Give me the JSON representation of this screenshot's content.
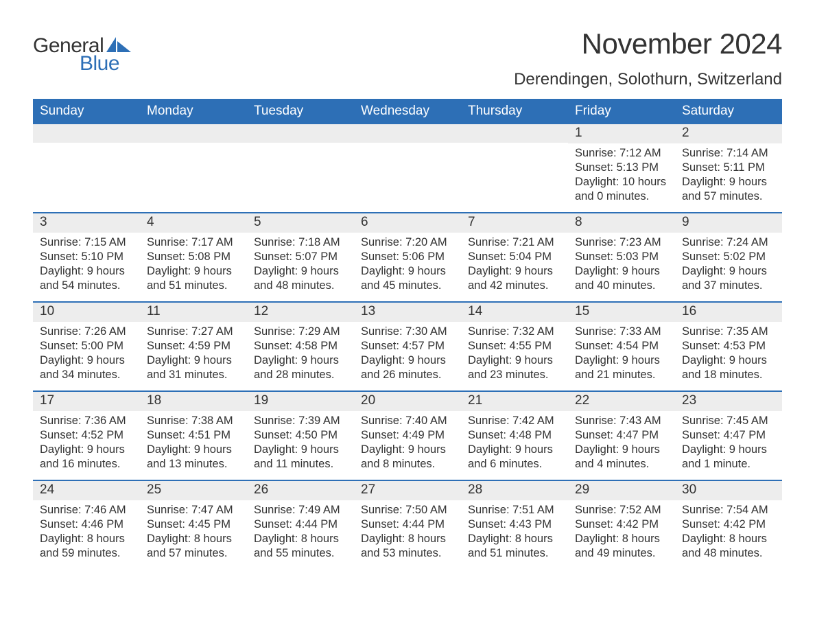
{
  "logo": {
    "text1": "General",
    "text2": "Blue",
    "flag_color": "#2d6fb6"
  },
  "title": "November 2024",
  "location": "Derendingen, Solothurn, Switzerland",
  "colors": {
    "header_bg": "#2d6fb6",
    "header_text": "#ffffff",
    "daynum_bg": "#ededed",
    "week_border": "#2d6fb6",
    "body_text": "#333333",
    "page_bg": "#ffffff"
  },
  "day_headers": [
    "Sunday",
    "Monday",
    "Tuesday",
    "Wednesday",
    "Thursday",
    "Friday",
    "Saturday"
  ],
  "weeks": [
    [
      {
        "day": "",
        "sunrise": "",
        "sunset": "",
        "daylight": ""
      },
      {
        "day": "",
        "sunrise": "",
        "sunset": "",
        "daylight": ""
      },
      {
        "day": "",
        "sunrise": "",
        "sunset": "",
        "daylight": ""
      },
      {
        "day": "",
        "sunrise": "",
        "sunset": "",
        "daylight": ""
      },
      {
        "day": "",
        "sunrise": "",
        "sunset": "",
        "daylight": ""
      },
      {
        "day": "1",
        "sunrise": "Sunrise: 7:12 AM",
        "sunset": "Sunset: 5:13 PM",
        "daylight": "Daylight: 10 hours and 0 minutes."
      },
      {
        "day": "2",
        "sunrise": "Sunrise: 7:14 AM",
        "sunset": "Sunset: 5:11 PM",
        "daylight": "Daylight: 9 hours and 57 minutes."
      }
    ],
    [
      {
        "day": "3",
        "sunrise": "Sunrise: 7:15 AM",
        "sunset": "Sunset: 5:10 PM",
        "daylight": "Daylight: 9 hours and 54 minutes."
      },
      {
        "day": "4",
        "sunrise": "Sunrise: 7:17 AM",
        "sunset": "Sunset: 5:08 PM",
        "daylight": "Daylight: 9 hours and 51 minutes."
      },
      {
        "day": "5",
        "sunrise": "Sunrise: 7:18 AM",
        "sunset": "Sunset: 5:07 PM",
        "daylight": "Daylight: 9 hours and 48 minutes."
      },
      {
        "day": "6",
        "sunrise": "Sunrise: 7:20 AM",
        "sunset": "Sunset: 5:06 PM",
        "daylight": "Daylight: 9 hours and 45 minutes."
      },
      {
        "day": "7",
        "sunrise": "Sunrise: 7:21 AM",
        "sunset": "Sunset: 5:04 PM",
        "daylight": "Daylight: 9 hours and 42 minutes."
      },
      {
        "day": "8",
        "sunrise": "Sunrise: 7:23 AM",
        "sunset": "Sunset: 5:03 PM",
        "daylight": "Daylight: 9 hours and 40 minutes."
      },
      {
        "day": "9",
        "sunrise": "Sunrise: 7:24 AM",
        "sunset": "Sunset: 5:02 PM",
        "daylight": "Daylight: 9 hours and 37 minutes."
      }
    ],
    [
      {
        "day": "10",
        "sunrise": "Sunrise: 7:26 AM",
        "sunset": "Sunset: 5:00 PM",
        "daylight": "Daylight: 9 hours and 34 minutes."
      },
      {
        "day": "11",
        "sunrise": "Sunrise: 7:27 AM",
        "sunset": "Sunset: 4:59 PM",
        "daylight": "Daylight: 9 hours and 31 minutes."
      },
      {
        "day": "12",
        "sunrise": "Sunrise: 7:29 AM",
        "sunset": "Sunset: 4:58 PM",
        "daylight": "Daylight: 9 hours and 28 minutes."
      },
      {
        "day": "13",
        "sunrise": "Sunrise: 7:30 AM",
        "sunset": "Sunset: 4:57 PM",
        "daylight": "Daylight: 9 hours and 26 minutes."
      },
      {
        "day": "14",
        "sunrise": "Sunrise: 7:32 AM",
        "sunset": "Sunset: 4:55 PM",
        "daylight": "Daylight: 9 hours and 23 minutes."
      },
      {
        "day": "15",
        "sunrise": "Sunrise: 7:33 AM",
        "sunset": "Sunset: 4:54 PM",
        "daylight": "Daylight: 9 hours and 21 minutes."
      },
      {
        "day": "16",
        "sunrise": "Sunrise: 7:35 AM",
        "sunset": "Sunset: 4:53 PM",
        "daylight": "Daylight: 9 hours and 18 minutes."
      }
    ],
    [
      {
        "day": "17",
        "sunrise": "Sunrise: 7:36 AM",
        "sunset": "Sunset: 4:52 PM",
        "daylight": "Daylight: 9 hours and 16 minutes."
      },
      {
        "day": "18",
        "sunrise": "Sunrise: 7:38 AM",
        "sunset": "Sunset: 4:51 PM",
        "daylight": "Daylight: 9 hours and 13 minutes."
      },
      {
        "day": "19",
        "sunrise": "Sunrise: 7:39 AM",
        "sunset": "Sunset: 4:50 PM",
        "daylight": "Daylight: 9 hours and 11 minutes."
      },
      {
        "day": "20",
        "sunrise": "Sunrise: 7:40 AM",
        "sunset": "Sunset: 4:49 PM",
        "daylight": "Daylight: 9 hours and 8 minutes."
      },
      {
        "day": "21",
        "sunrise": "Sunrise: 7:42 AM",
        "sunset": "Sunset: 4:48 PM",
        "daylight": "Daylight: 9 hours and 6 minutes."
      },
      {
        "day": "22",
        "sunrise": "Sunrise: 7:43 AM",
        "sunset": "Sunset: 4:47 PM",
        "daylight": "Daylight: 9 hours and 4 minutes."
      },
      {
        "day": "23",
        "sunrise": "Sunrise: 7:45 AM",
        "sunset": "Sunset: 4:47 PM",
        "daylight": "Daylight: 9 hours and 1 minute."
      }
    ],
    [
      {
        "day": "24",
        "sunrise": "Sunrise: 7:46 AM",
        "sunset": "Sunset: 4:46 PM",
        "daylight": "Daylight: 8 hours and 59 minutes."
      },
      {
        "day": "25",
        "sunrise": "Sunrise: 7:47 AM",
        "sunset": "Sunset: 4:45 PM",
        "daylight": "Daylight: 8 hours and 57 minutes."
      },
      {
        "day": "26",
        "sunrise": "Sunrise: 7:49 AM",
        "sunset": "Sunset: 4:44 PM",
        "daylight": "Daylight: 8 hours and 55 minutes."
      },
      {
        "day": "27",
        "sunrise": "Sunrise: 7:50 AM",
        "sunset": "Sunset: 4:44 PM",
        "daylight": "Daylight: 8 hours and 53 minutes."
      },
      {
        "day": "28",
        "sunrise": "Sunrise: 7:51 AM",
        "sunset": "Sunset: 4:43 PM",
        "daylight": "Daylight: 8 hours and 51 minutes."
      },
      {
        "day": "29",
        "sunrise": "Sunrise: 7:52 AM",
        "sunset": "Sunset: 4:42 PM",
        "daylight": "Daylight: 8 hours and 49 minutes."
      },
      {
        "day": "30",
        "sunrise": "Sunrise: 7:54 AM",
        "sunset": "Sunset: 4:42 PM",
        "daylight": "Daylight: 8 hours and 48 minutes."
      }
    ]
  ]
}
